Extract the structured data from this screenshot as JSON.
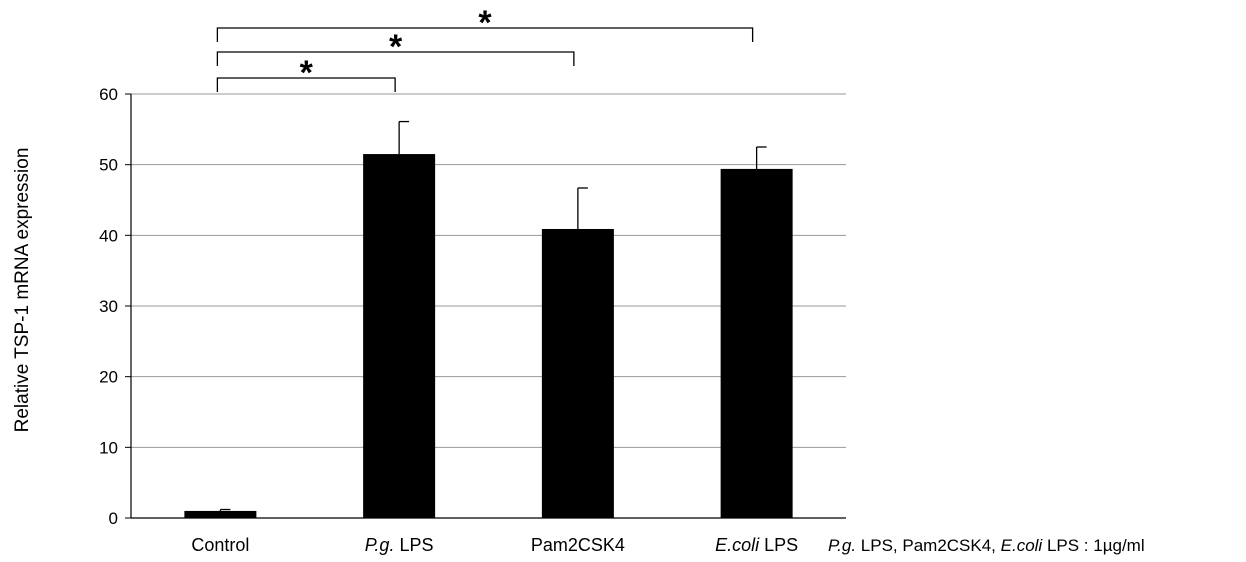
{
  "chart_data": {
    "type": "bar",
    "categories": [
      "Control",
      "P.g. LPS",
      "Pam2CSK4",
      "E.coli LPS"
    ],
    "category_labels": [
      [
        {
          "text": "Control",
          "italic": false
        }
      ],
      [
        {
          "text": "P.g.",
          "italic": true
        },
        {
          "text": " LPS",
          "italic": false
        }
      ],
      [
        {
          "text": "Pam2CSK4",
          "italic": false
        }
      ],
      [
        {
          "text": "E.coli",
          "italic": true
        },
        {
          "text": " LPS",
          "italic": false
        }
      ]
    ],
    "values": [
      1.0,
      51.5,
      40.9,
      49.4
    ],
    "errors": [
      0.2,
      4.6,
      5.8,
      3.1
    ],
    "ylabel": "Relative TSP-1 mRNA expression",
    "xlabel": "",
    "ylim": [
      0,
      60
    ],
    "yticks": [
      0,
      10,
      20,
      30,
      40,
      50,
      60
    ],
    "grid": true,
    "bar_color": "#000000",
    "grid_color": "#999999",
    "significance": [
      {
        "from": "Control",
        "to": "P.g. LPS",
        "label": "*"
      },
      {
        "from": "Control",
        "to": "Pam2CSK4",
        "label": "*"
      },
      {
        "from": "Control",
        "to": "E.coli LPS",
        "label": "*"
      }
    ],
    "note": [
      {
        "text": "P.g.",
        "italic": true
      },
      {
        "text": " LPS, Pam2CSK4, ",
        "italic": false
      },
      {
        "text": "E.coli",
        "italic": true
      },
      {
        "text": " LPS : 1µg/ml",
        "italic": false
      }
    ]
  }
}
